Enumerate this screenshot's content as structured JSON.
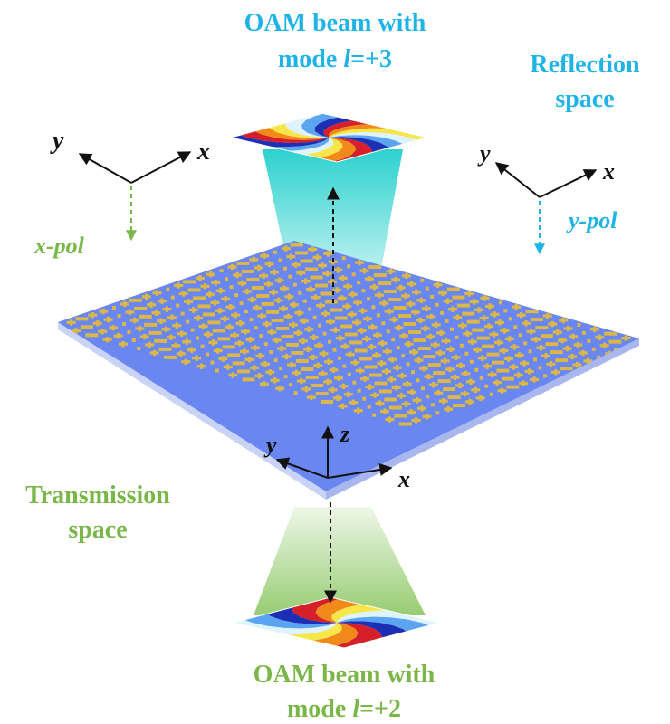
{
  "top_label": {
    "line1": "OAM beam with",
    "line2_prefix": "mode ",
    "line2_var": "l",
    "line2_suffix": "=+3"
  },
  "reflection_label": {
    "line1": "Reflection",
    "line2": "space"
  },
  "transmission_label": {
    "line1": "Transmission",
    "line2": "space"
  },
  "bottom_label": {
    "line1": "OAM beam with",
    "line2_prefix": "mode ",
    "line2_var": "l",
    "line2_suffix": "=+2"
  },
  "left_axes": {
    "y": "y",
    "x": "x",
    "pol": "x-pol"
  },
  "right_axes": {
    "y": "y",
    "x": "x",
    "pol": "y-pol"
  },
  "center_axes": {
    "y": "y",
    "x": "x",
    "z": "z"
  },
  "colors": {
    "reflection": "#1fb3e6",
    "transmission": "#7ab648",
    "substrate": "#6a86f0",
    "substrate_edge": "#c9d3f5",
    "patch": "#d9b748",
    "beam_top": "#2fd3d0",
    "beam_bottom": "#9fd07a"
  }
}
